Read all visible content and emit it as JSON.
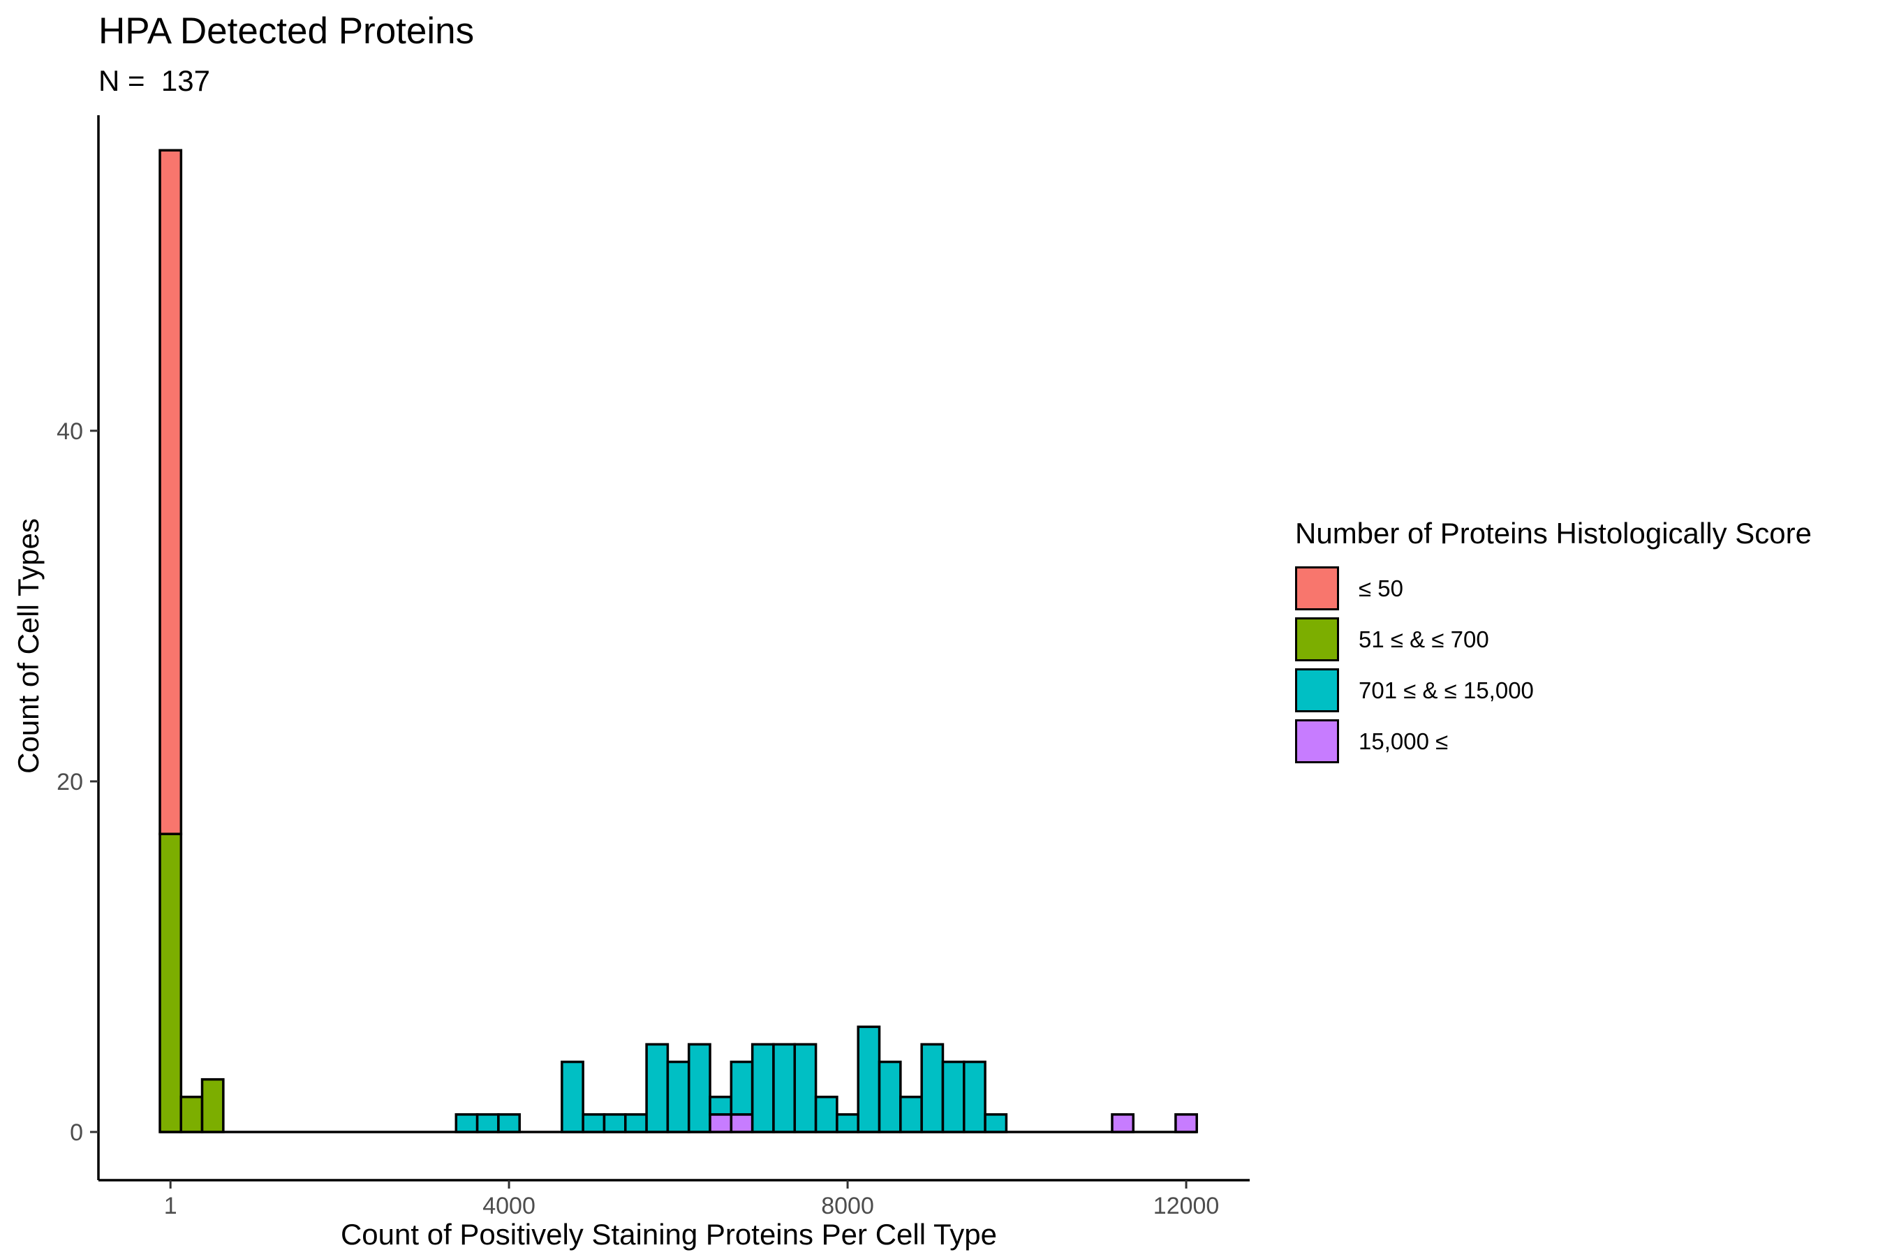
{
  "chart_data": {
    "type": "bar",
    "subtype": "stacked-histogram",
    "title": "HPA Detected Proteins",
    "subtitle": "N =  137",
    "xlabel": "Count of Positively Staining Proteins Per Cell Type",
    "ylabel": "Count of Cell Types",
    "xlim": [
      -850,
      12750
    ],
    "ylim": [
      -2.75,
      58
    ],
    "x_ticks": [
      1,
      4000,
      8000,
      12000
    ],
    "x_tick_labels": [
      "1",
      "4000",
      "8000",
      "12000"
    ],
    "y_ticks": [
      0,
      20,
      40
    ],
    "y_tick_labels": [
      "0",
      "20",
      "40"
    ],
    "bin_width": 250,
    "grid": false,
    "legend_title": "Number of Proteins Histologically Score",
    "legend_position": "right",
    "series": [
      {
        "name": "≤ 50",
        "color": "#F8766D",
        "bins": [
          {
            "x": 1,
            "y": 39
          }
        ]
      },
      {
        "name": "51 ≤ & ≤ 700",
        "color": "#7CAE00",
        "bins": [
          {
            "x": 1,
            "y": 17
          },
          {
            "x": 250,
            "y": 2
          },
          {
            "x": 500,
            "y": 3
          }
        ]
      },
      {
        "name": "701 ≤ & ≤ 15,000",
        "color": "#00BFC4",
        "bins": [
          {
            "x": 3500,
            "y": 1
          },
          {
            "x": 3750,
            "y": 1
          },
          {
            "x": 4000,
            "y": 1
          },
          {
            "x": 4750,
            "y": 4
          },
          {
            "x": 5000,
            "y": 1
          },
          {
            "x": 5250,
            "y": 1
          },
          {
            "x": 5500,
            "y": 1
          },
          {
            "x": 5750,
            "y": 5
          },
          {
            "x": 6000,
            "y": 4
          },
          {
            "x": 6250,
            "y": 5
          },
          {
            "x": 6500,
            "y": 1
          },
          {
            "x": 6750,
            "y": 3
          },
          {
            "x": 7000,
            "y": 5
          },
          {
            "x": 7250,
            "y": 5
          },
          {
            "x": 7500,
            "y": 5
          },
          {
            "x": 7750,
            "y": 2
          },
          {
            "x": 8000,
            "y": 1
          },
          {
            "x": 8250,
            "y": 6
          },
          {
            "x": 8500,
            "y": 4
          },
          {
            "x": 8750,
            "y": 2
          },
          {
            "x": 9000,
            "y": 5
          },
          {
            "x": 9250,
            "y": 4
          },
          {
            "x": 9500,
            "y": 4
          },
          {
            "x": 9750,
            "y": 1
          }
        ]
      },
      {
        "name": "15,000 ≤",
        "color": "#C77CFF",
        "bins": [
          {
            "x": 6500,
            "y": 1
          },
          {
            "x": 6750,
            "y": 1
          },
          {
            "x": 11250,
            "y": 1
          },
          {
            "x": 12000,
            "y": 1
          }
        ]
      }
    ]
  }
}
